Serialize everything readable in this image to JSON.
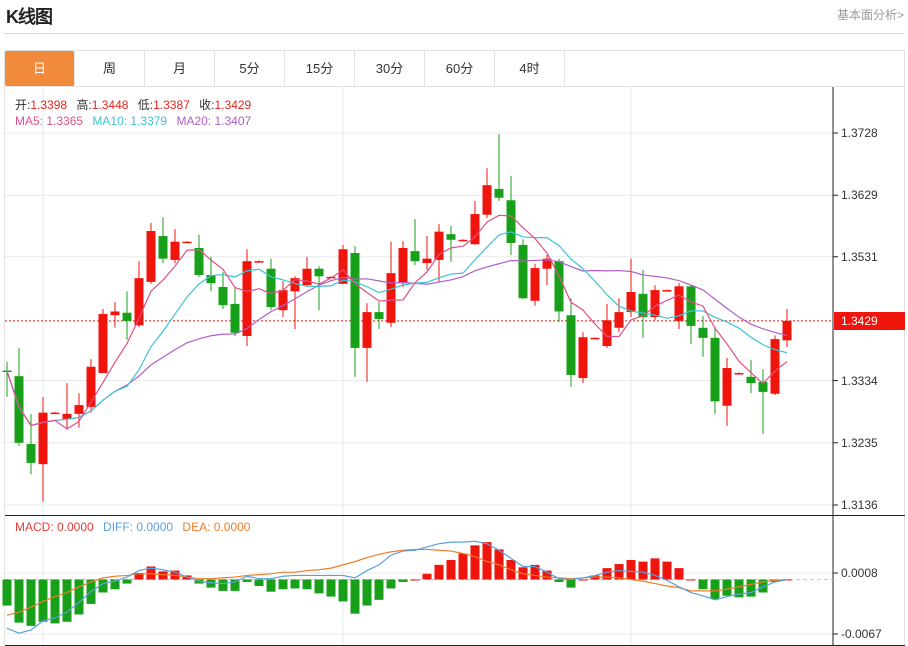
{
  "header": {
    "title": "K线图",
    "link": "基本面分析>"
  },
  "tabs": [
    {
      "label": "日",
      "active": true
    },
    {
      "label": "周"
    },
    {
      "label": "月"
    },
    {
      "label": "5分"
    },
    {
      "label": "15分"
    },
    {
      "label": "30分"
    },
    {
      "label": "60分"
    },
    {
      "label": "4时"
    }
  ],
  "legend": {
    "open_label": "开:",
    "open": "1.3398",
    "high_label": "高:",
    "high": "1.3448",
    "low_label": "低:",
    "low": "1.3387",
    "close_label": "收:",
    "close": "1.3429",
    "ma5": "MA5: 1.3365",
    "ma10": "MA10: 1.3379",
    "ma20": "MA20: 1.3407"
  },
  "macd_legend": {
    "macd": "MACD: 0.0000",
    "diff": "DIFF: 0.0000",
    "dea": "DEA: 0.0000"
  },
  "colors": {
    "up": "#f0150c",
    "down": "#18a01a",
    "ma5": "#e0508a",
    "ma10": "#3cc4d4",
    "ma20": "#b05ec8",
    "diff": "#5aa0e0",
    "dea": "#f07d2a",
    "accent": "#f28a3c"
  },
  "chart_data": [
    {
      "type": "candlestick",
      "ylim": [
        1.3136,
        1.3728
      ],
      "yticks": [
        "1.3728",
        "1.3629",
        "1.3531",
        "1.3334",
        "1.3235",
        "1.3136"
      ],
      "current_price": "1.3429",
      "grid": true,
      "ohlc": [
        [
          1.335,
          1.3364,
          1.3308,
          1.3349
        ],
        [
          1.3341,
          1.3386,
          1.323,
          1.3235
        ],
        [
          1.3233,
          1.3281,
          1.3185,
          1.3203
        ],
        [
          1.3201,
          1.3308,
          1.3141,
          1.3283
        ],
        [
          1.3283,
          1.3284,
          1.3282,
          1.3283
        ],
        [
          1.3273,
          1.333,
          1.3257,
          1.3281
        ],
        [
          1.3281,
          1.3314,
          1.3259,
          1.3295
        ],
        [
          1.3292,
          1.3368,
          1.3283,
          1.3356
        ],
        [
          1.3346,
          1.3448,
          1.3346,
          1.344
        ],
        [
          1.3438,
          1.3459,
          1.3418,
          1.3444
        ],
        [
          1.3442,
          1.3476,
          1.3399,
          1.3429
        ],
        [
          1.3422,
          1.3524,
          1.3419,
          1.3497
        ],
        [
          1.3491,
          1.3585,
          1.3488,
          1.3572
        ],
        [
          1.3564,
          1.3594,
          1.3521,
          1.3528
        ],
        [
          1.3526,
          1.3575,
          1.3521,
          1.3555
        ],
        [
          1.3555,
          1.3556,
          1.3554,
          1.3555
        ],
        [
          1.3545,
          1.3566,
          1.3499,
          1.3502
        ],
        [
          1.3502,
          1.3531,
          1.3476,
          1.3489
        ],
        [
          1.3483,
          1.3507,
          1.3448,
          1.3454
        ],
        [
          1.3456,
          1.3483,
          1.3405,
          1.341
        ],
        [
          1.3405,
          1.3543,
          1.3389,
          1.3524
        ],
        [
          1.3524,
          1.3525,
          1.3523,
          1.3524
        ],
        [
          1.3512,
          1.3528,
          1.3446,
          1.3451
        ],
        [
          1.3446,
          1.3492,
          1.3435,
          1.3478
        ],
        [
          1.3476,
          1.35,
          1.3416,
          1.3497
        ],
        [
          1.3486,
          1.3531,
          1.3483,
          1.3512
        ],
        [
          1.3512,
          1.3516,
          1.3446,
          1.35
        ],
        [
          1.3499,
          1.35,
          1.3498,
          1.3499
        ],
        [
          1.3488,
          1.355,
          1.3488,
          1.3543
        ],
        [
          1.3537,
          1.3548,
          1.334,
          1.3386
        ],
        [
          1.3386,
          1.3457,
          1.3332,
          1.3443
        ],
        [
          1.3443,
          1.3459,
          1.3416,
          1.3432
        ],
        [
          1.3426,
          1.3555,
          1.3419,
          1.3505
        ],
        [
          1.3489,
          1.3556,
          1.3483,
          1.3545
        ],
        [
          1.354,
          1.3591,
          1.3518,
          1.3524
        ],
        [
          1.3521,
          1.3564,
          1.351,
          1.3528
        ],
        [
          1.3526,
          1.3583,
          1.3491,
          1.3571
        ],
        [
          1.3567,
          1.358,
          1.3523,
          1.3558
        ],
        [
          1.3558,
          1.3559,
          1.3557,
          1.3558
        ],
        [
          1.3551,
          1.362,
          1.355,
          1.3599
        ],
        [
          1.3598,
          1.3672,
          1.3593,
          1.3645
        ],
        [
          1.3639,
          1.3726,
          1.362,
          1.3625
        ],
        [
          1.3621,
          1.366,
          1.3534,
          1.3553
        ],
        [
          1.355,
          1.3559,
          1.3464,
          1.3465
        ],
        [
          1.3461,
          1.352,
          1.3453,
          1.3513
        ],
        [
          1.3512,
          1.3534,
          1.3486,
          1.3528
        ],
        [
          1.3524,
          1.3528,
          1.3427,
          1.3444
        ],
        [
          1.3438,
          1.3465,
          1.3324,
          1.3343
        ],
        [
          1.3338,
          1.3411,
          1.333,
          1.3403
        ],
        [
          1.3402,
          1.3403,
          1.3401,
          1.3402
        ],
        [
          1.3389,
          1.3456,
          1.3386,
          1.343
        ],
        [
          1.3418,
          1.3465,
          1.3411,
          1.3443
        ],
        [
          1.3443,
          1.3528,
          1.3435,
          1.3475
        ],
        [
          1.3472,
          1.351,
          1.3402,
          1.3435
        ],
        [
          1.3435,
          1.3486,
          1.343,
          1.3478
        ],
        [
          1.3478,
          1.3479,
          1.3477,
          1.3478
        ],
        [
          1.3429,
          1.3489,
          1.3416,
          1.3484
        ],
        [
          1.3484,
          1.3486,
          1.3392,
          1.3421
        ],
        [
          1.3418,
          1.3437,
          1.3372,
          1.3402
        ],
        [
          1.3402,
          1.3418,
          1.3281,
          1.3301
        ],
        [
          1.3294,
          1.337,
          1.3262,
          1.3354
        ],
        [
          1.3346,
          1.3347,
          1.3345,
          1.3346
        ],
        [
          1.334,
          1.3367,
          1.3314,
          1.333
        ],
        [
          1.3332,
          1.3352,
          1.3249,
          1.3316
        ],
        [
          1.3313,
          1.3406,
          1.3311,
          1.34
        ],
        [
          1.3398,
          1.3448,
          1.3387,
          1.3429
        ]
      ],
      "moving_averages": [
        5,
        10,
        20
      ]
    },
    {
      "type": "bar+line",
      "ylim": [
        -0.0067,
        0.0008
      ],
      "yticks": [
        "0.0008",
        "-0.0067"
      ],
      "macd": [
        -0.0032,
        -0.0053,
        -0.0057,
        -0.0052,
        -0.0054,
        -0.0052,
        -0.0043,
        -0.003,
        -0.0016,
        -0.0012,
        -0.0005,
        0.0008,
        0.0016,
        0.001,
        0.0011,
        0.0005,
        -0.0005,
        -0.001,
        -0.0014,
        -0.0014,
        -0.0003,
        -0.0008,
        -0.0015,
        -0.0012,
        -0.0011,
        -0.0012,
        -0.0017,
        -0.0021,
        -0.0027,
        -0.0042,
        -0.0032,
        -0.0025,
        -0.0011,
        -0.0003,
        0.0,
        0.0007,
        0.0018,
        0.0024,
        0.0032,
        0.0042,
        0.0046,
        0.0037,
        0.0024,
        0.0015,
        0.0018,
        0.0011,
        -0.0003,
        -0.001,
        0.0,
        0.0005,
        0.0014,
        0.0019,
        0.0024,
        0.0022,
        0.0026,
        0.0022,
        0.0014,
        0.0,
        -0.0012,
        -0.0024,
        -0.002,
        -0.0022,
        -0.0021,
        -0.0016,
        -0.0003,
        0.0
      ],
      "diff": [
        -0.006,
        -0.0066,
        -0.0062,
        -0.0051,
        -0.0047,
        -0.004,
        -0.0028,
        -0.0015,
        -0.0005,
        -0.0002,
        0.0003,
        0.0011,
        0.0014,
        0.0012,
        0.0009,
        0.0003,
        -0.0002,
        -0.0004,
        -0.0005,
        -0.0003,
        0.0004,
        0.0001,
        0.0001,
        0.0004,
        0.0005,
        0.0005,
        0.0005,
        0.0005,
        0.0005,
        0.0002,
        0.0011,
        0.0018,
        0.003,
        0.0035,
        0.0036,
        0.004,
        0.0044,
        0.0046,
        0.0046,
        0.0047,
        0.0044,
        0.0036,
        0.0026,
        0.0016,
        0.0016,
        0.0009,
        0.0001,
        0.0,
        0.0002,
        0.0005,
        0.0009,
        0.0011,
        0.001,
        0.0009,
        0.0005,
        -0.0001,
        -0.0009,
        -0.0016,
        -0.002,
        -0.0025,
        -0.0021,
        -0.0018,
        -0.0016,
        -0.0009,
        -0.0003,
        0.0
      ],
      "dea": [
        -0.0044,
        -0.004,
        -0.0034,
        -0.0027,
        -0.0021,
        -0.0016,
        -0.0009,
        -0.0003,
        0.0002,
        0.0004,
        0.0005,
        0.0007,
        0.0007,
        0.0006,
        0.0005,
        0.0003,
        0.0001,
        0.0001,
        0.0002,
        0.0003,
        0.0005,
        0.0006,
        0.0007,
        0.0009,
        0.0009,
        0.0011,
        0.0012,
        0.0014,
        0.0018,
        0.0022,
        0.0027,
        0.0031,
        0.0034,
        0.0036,
        0.0037,
        0.0037,
        0.0036,
        0.0035,
        0.0032,
        0.0028,
        0.0022,
        0.0018,
        0.0012,
        0.0007,
        0.0005,
        0.0003,
        0.0002,
        0.0001,
        0.0002,
        0.0003,
        0.0003,
        0.0002,
        0.0,
        -0.0002,
        -0.0005,
        -0.0008,
        -0.001,
        -0.0014,
        -0.0014,
        -0.0014,
        -0.0012,
        -0.0009,
        -0.0006,
        -0.0003,
        -0.0001,
        0.0
      ]
    }
  ]
}
